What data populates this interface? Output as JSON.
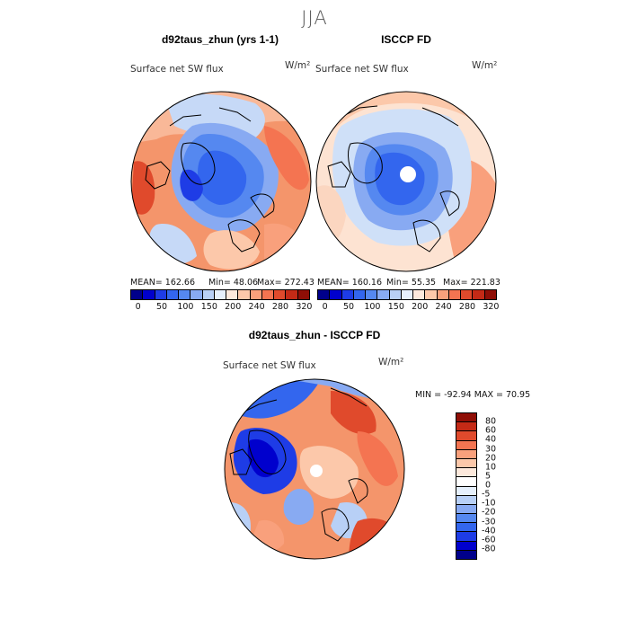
{
  "figure": {
    "season": "JJA"
  },
  "panel1": {
    "title": "d92taus_zhun (yrs 1-1)",
    "subtitle": "Surface net SW flux",
    "units": "W/m²",
    "stats": {
      "mean": "MEAN= 162.66",
      "min": "Min= 48.06",
      "max": "Max= 272.43"
    }
  },
  "panel2": {
    "title": "ISCCP FD",
    "subtitle": "Surface net SW flux",
    "units": "W/m²",
    "stats": {
      "mean": "MEAN= 160.16",
      "min": "Min= 55.35",
      "max": "Max= 221.83"
    }
  },
  "panel3": {
    "title": "d92taus_zhun - ISCCP FD",
    "subtitle": "Surface net SW flux",
    "units": "W/m²",
    "stats": "MIN = -92.94 MAX = 70.95"
  },
  "colorbar_top": {
    "labels": [
      "0",
      "50",
      "100",
      "150",
      "200",
      "240",
      "280",
      "320"
    ],
    "colors": [
      "#00008b",
      "#0000cd",
      "#1e3ce6",
      "#3366ee",
      "#5588f0",
      "#88aaf2",
      "#b8d0f6",
      "#e6f0fc",
      "#fde9dc",
      "#fcc8aa",
      "#f9a07c",
      "#f47451",
      "#e04a2c",
      "#c42a16",
      "#8f0e06"
    ]
  },
  "colorbar_diff": {
    "labels": [
      "80",
      "60",
      "40",
      "30",
      "20",
      "10",
      "5",
      "0",
      "-5",
      "-10",
      "-20",
      "-30",
      "-40",
      "-60",
      "-80"
    ],
    "colors": [
      "#8f0e06",
      "#c42a16",
      "#e04a2c",
      "#f47451",
      "#f9a07c",
      "#fcc8aa",
      "#fde9dc",
      "#ffffff",
      "#e6f0fc",
      "#b8d0f6",
      "#88aaf2",
      "#5588f0",
      "#3366ee",
      "#1e3ce6",
      "#0000cd",
      "#00008b"
    ]
  }
}
